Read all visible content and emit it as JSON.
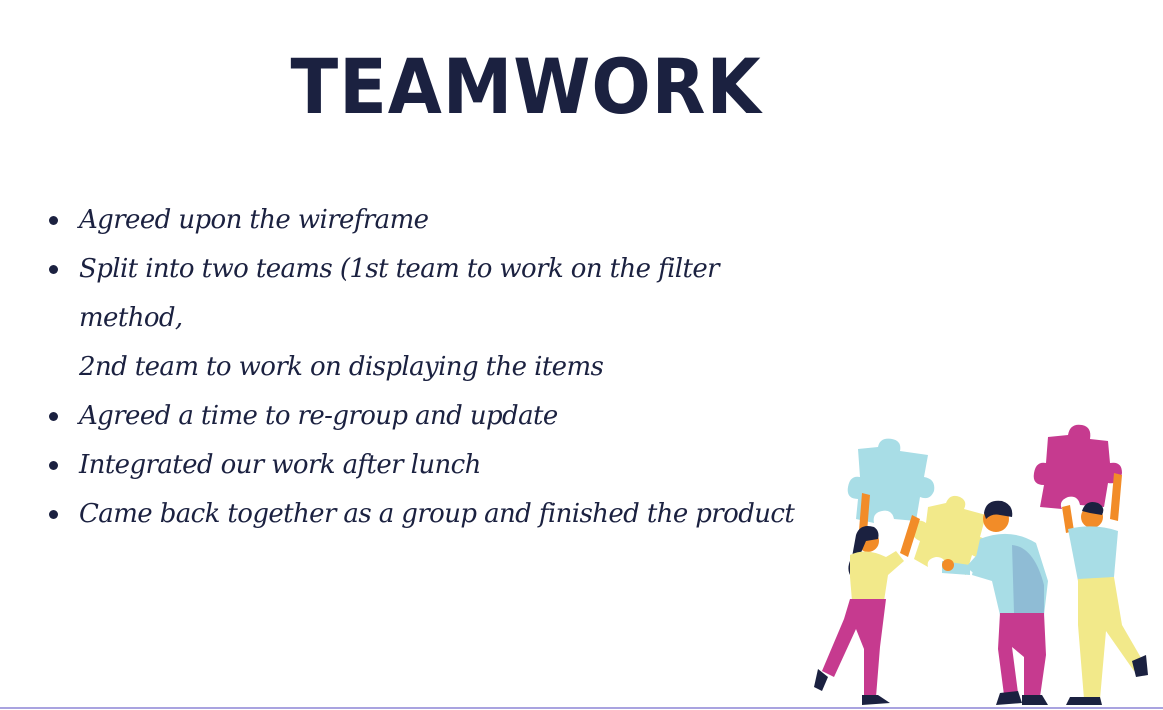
{
  "slide": {
    "title": "TEAMWORK",
    "bullets": [
      "Agreed upon the wireframe",
      "Split into two teams (1st team to work on the filter method,",
      "2nd team to work on displaying the items",
      "Agreed a time to re-group and update",
      "Integrated our work after lunch",
      "Came back together as a group and finished the product"
    ]
  },
  "colors": {
    "text": "#1b2140",
    "puzzle_blue": "#a8dde6",
    "puzzle_yellow": "#f2e98a",
    "puzzle_magenta": "#c63a8f",
    "accent_orange": "#f28c28",
    "divider": "#a9a3e0"
  },
  "illustration": {
    "icon": "team-puzzle-illustration"
  }
}
